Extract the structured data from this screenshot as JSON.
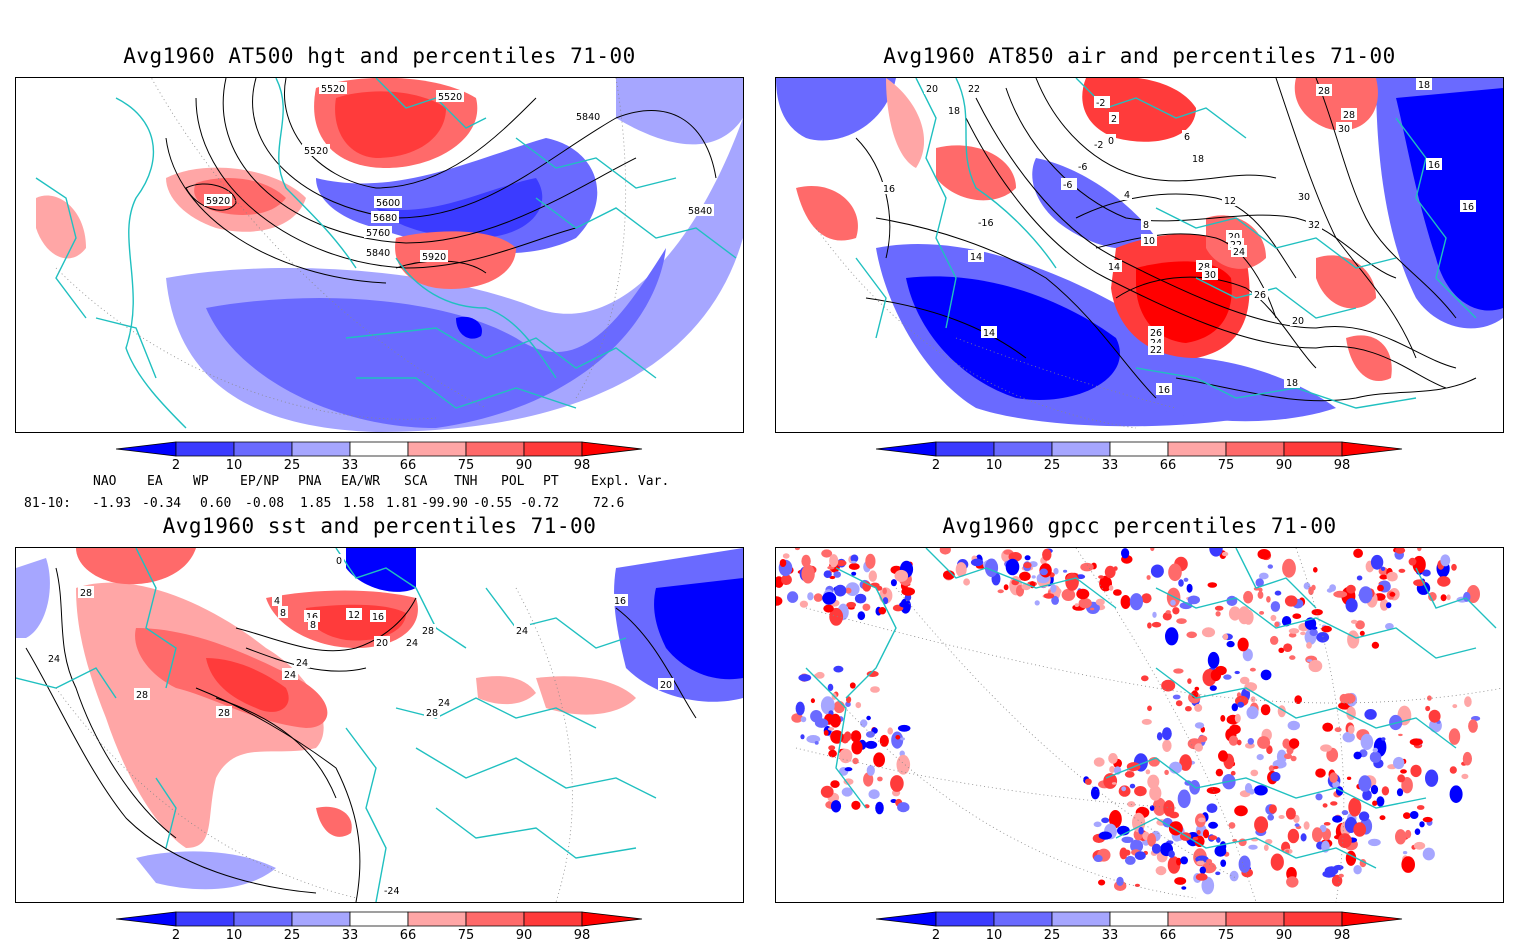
{
  "colors": {
    "coast": "#20c0c0",
    "blue": [
      "#0000ff",
      "#3b3bff",
      "#6a6aff",
      "#a6a6ff"
    ],
    "red": [
      "#ffa6a6",
      "#ff6a6a",
      "#ff3b3b",
      "#ff0000"
    ],
    "contour": "#000000"
  },
  "panels": [
    {
      "id": "hgt500",
      "title": "Avg1960 AT500 hgt and percentiles 71-00",
      "contour_labels": [
        "5520",
        "5520",
        "5520",
        "5840",
        "5840",
        "5920",
        "5600",
        "5680",
        "5760",
        "5840",
        "5920"
      ]
    },
    {
      "id": "air850",
      "title": "Avg1960 AT850 air and percentiles 71-00",
      "contour_labels": [
        "20",
        "22",
        "18",
        "-2",
        "2",
        "0",
        "-6",
        "-2",
        "6",
        "18",
        "28",
        "28",
        "30",
        "16",
        "16",
        "18",
        "-6",
        "4",
        "12",
        "30",
        "32",
        "-16",
        "16",
        "8",
        "10",
        "20",
        "22",
        "24",
        "14",
        "14",
        "28",
        "30",
        "26",
        "14",
        "20",
        "26",
        "24",
        "22",
        "16",
        "18"
      ]
    },
    {
      "id": "sst",
      "title": "Avg1960 sst and percentiles 71-00",
      "contour_labels": [
        "0",
        "28",
        "24",
        "28",
        "28",
        "4",
        "8",
        "16",
        "8",
        "12",
        "16",
        "20",
        "24",
        "24",
        "24",
        "28",
        "24",
        "28",
        "24",
        "16",
        "20",
        "-24"
      ]
    },
    {
      "id": "gpcc",
      "title": "Avg1960 gpcc percentiles 71-00",
      "contour_labels": []
    }
  ],
  "colorbar": {
    "ticks": [
      "2",
      "10",
      "25",
      "33",
      "66",
      "75",
      "90",
      "98"
    ]
  },
  "indices": {
    "headers": [
      "NAO",
      "EA",
      "WP",
      "EP/NP",
      "PNA",
      "EA/WR",
      "SCA",
      "TNH",
      "POL",
      "PT",
      "Expl. Var."
    ],
    "row_label": "81-10:",
    "values": [
      "-1.93",
      "-0.34",
      "0.60",
      "-0.08",
      "1.85",
      "1.58",
      "1.81",
      "-99.90",
      "-0.55",
      "-0.72",
      "72.6"
    ]
  }
}
